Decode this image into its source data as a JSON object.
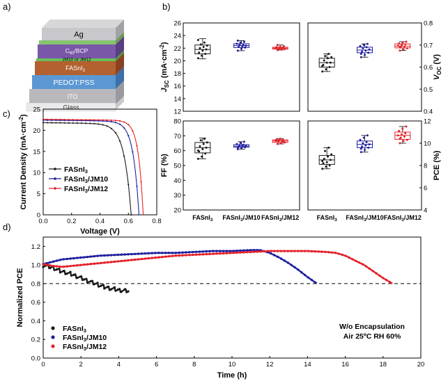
{
  "panels": {
    "a": "a)",
    "b": "b)",
    "c": "c)",
    "d": "d)"
  },
  "device_stack": {
    "layers": [
      "Ag",
      "C60/BCP",
      "JM10 or JM12",
      "FASnI3",
      "PEDOT:PSS",
      "ITO",
      "Glass"
    ],
    "c60_main": "C",
    "c60_sub": "60",
    "c60_rest": "/BCP",
    "fasni_main": "FASnI",
    "fasni_sub": "3"
  },
  "colors": {
    "black": "#1a1a1a",
    "blue": "#1f1f9e",
    "red": "#e3232b",
    "ag": "#c8c8cc",
    "c60": "#7a57a8",
    "jm": "#6abf59",
    "fasni": "#b35a2b",
    "pedot": "#4f8fd1",
    "ito": "#b4b4b8",
    "glass": "#e8e8ea"
  },
  "chart_data": [
    {
      "id": "b-jsc",
      "type": "box",
      "ylabel_main": "J",
      "ylabel_sub": "SC",
      "ylabel_rest": " (mA·cm",
      "ylabel_sup": "-2",
      "ylabel_end": ")",
      "ylim": [
        12,
        26
      ],
      "yticks": [
        12,
        14,
        16,
        18,
        20,
        22,
        24,
        26
      ],
      "categories": [
        "FASnI3",
        "FASnI3/JM10",
        "FASnI3/JM12"
      ],
      "boxes": [
        {
          "min": 20.3,
          "q1": 21.1,
          "median": 21.8,
          "q3": 22.5,
          "max": 23.5,
          "points": [
            20.4,
            20.8,
            21.1,
            21.3,
            21.6,
            21.8,
            22.0,
            22.2,
            22.4,
            22.6,
            22.9,
            23.3
          ]
        },
        {
          "min": 21.6,
          "q1": 22.1,
          "median": 22.4,
          "q3": 22.7,
          "max": 23.2,
          "points": [
            21.6,
            21.9,
            22.1,
            22.2,
            22.3,
            22.4,
            22.5,
            22.6,
            22.7,
            22.9,
            23.0,
            23.2
          ]
        },
        {
          "min": 21.7,
          "q1": 21.85,
          "median": 22.0,
          "q3": 22.15,
          "max": 22.5,
          "points": [
            21.7,
            21.8,
            21.85,
            21.9,
            22.0,
            22.0,
            22.05,
            22.1,
            22.15,
            22.2,
            22.3,
            22.5
          ]
        }
      ]
    },
    {
      "id": "b-voc",
      "type": "box",
      "ylabel_main": "V",
      "ylabel_sub": "OC",
      "ylabel_rest": " (V)",
      "ylim": [
        0.4,
        0.8
      ],
      "yticks": [
        0.4,
        0.5,
        0.6,
        0.7,
        0.8
      ],
      "categories": [
        "FASnI3",
        "FASnI3/JM10",
        "FASnI3/JM12"
      ],
      "boxes": [
        {
          "min": 0.58,
          "q1": 0.6,
          "median": 0.62,
          "q3": 0.64,
          "max": 0.66,
          "points": [
            0.58,
            0.59,
            0.6,
            0.61,
            0.62,
            0.62,
            0.63,
            0.64,
            0.645,
            0.65,
            0.66,
            0.605
          ]
        },
        {
          "min": 0.645,
          "q1": 0.665,
          "median": 0.677,
          "q3": 0.69,
          "max": 0.705,
          "points": [
            0.645,
            0.655,
            0.665,
            0.67,
            0.675,
            0.68,
            0.685,
            0.69,
            0.695,
            0.7,
            0.705,
            0.66
          ]
        },
        {
          "min": 0.675,
          "q1": 0.687,
          "median": 0.695,
          "q3": 0.705,
          "max": 0.715,
          "points": [
            0.675,
            0.68,
            0.685,
            0.69,
            0.693,
            0.697,
            0.7,
            0.703,
            0.707,
            0.71,
            0.715,
            0.69
          ]
        }
      ]
    },
    {
      "id": "b-ff",
      "type": "box",
      "ylabel_main": "FF (%)",
      "ylim": [
        20,
        80
      ],
      "yticks": [
        20,
        30,
        40,
        50,
        60,
        70,
        80
      ],
      "categories": [
        "FASnI3",
        "FASnI3/JM10",
        "FASnI3/JM12"
      ],
      "boxes": [
        {
          "min": 54.5,
          "q1": 58.5,
          "median": 62.0,
          "q3": 65.5,
          "max": 68.5,
          "points": [
            54.5,
            56.0,
            58.0,
            59.5,
            61.0,
            62.0,
            63.0,
            64.5,
            65.5,
            67.0,
            68.0,
            60.0
          ]
        },
        {
          "min": 61.0,
          "q1": 62.3,
          "median": 63.0,
          "q3": 64.0,
          "max": 66.0,
          "points": [
            61.0,
            61.8,
            62.3,
            62.7,
            63.0,
            63.3,
            63.7,
            64.0,
            64.5,
            65.2,
            66.0,
            62.0
          ]
        },
        {
          "min": 64.5,
          "q1": 65.5,
          "median": 66.5,
          "q3": 67.3,
          "max": 68.0,
          "points": [
            64.5,
            65.0,
            65.5,
            66.0,
            66.3,
            66.6,
            67.0,
            67.3,
            67.6,
            68.0,
            65.8,
            66.9
          ]
        }
      ]
    },
    {
      "id": "b-pce",
      "type": "box",
      "ylabel_main": "PCE (%)",
      "ylim": [
        4,
        12
      ],
      "yticks": [
        4,
        6,
        8,
        10,
        12
      ],
      "categories": [
        "FASnI3",
        "FASnI3/JM10",
        "FASnI3/JM12"
      ],
      "boxes": [
        {
          "min": 7.7,
          "q1": 8.1,
          "median": 8.5,
          "q3": 8.9,
          "max": 9.6,
          "points": [
            7.7,
            7.9,
            8.0,
            8.2,
            8.3,
            8.5,
            8.6,
            8.8,
            9.0,
            9.3,
            9.6,
            8.4
          ]
        },
        {
          "min": 9.2,
          "q1": 9.6,
          "median": 9.9,
          "q3": 10.2,
          "max": 10.7,
          "points": [
            9.2,
            9.4,
            9.6,
            9.7,
            9.8,
            9.9,
            10.0,
            10.1,
            10.3,
            10.5,
            10.7,
            9.5
          ]
        },
        {
          "min": 10.0,
          "q1": 10.35,
          "median": 10.7,
          "q3": 11.0,
          "max": 11.5,
          "points": [
            10.0,
            10.2,
            10.3,
            10.5,
            10.6,
            10.7,
            10.8,
            10.9,
            11.1,
            11.3,
            11.5,
            10.4
          ]
        }
      ]
    },
    {
      "id": "c-jv",
      "type": "line",
      "xlabel": "Voltage (V)",
      "ylabel_main": "Current Density (mA·cm",
      "ylabel_sup": "-2",
      "ylabel_end": ")",
      "xlim": [
        0,
        0.8
      ],
      "ylim": [
        0,
        25
      ],
      "xticks": [
        0.0,
        0.2,
        0.4,
        0.6,
        0.8
      ],
      "yticks": [
        0,
        5,
        10,
        15,
        20,
        25
      ],
      "series": [
        {
          "name": "FASnI3",
          "legend_main": "FASnI",
          "legend_sub": "3",
          "legend_rest": "",
          "color_key": "black",
          "jsc": 21.8,
          "voc": 0.62,
          "n": 0.048
        },
        {
          "name": "FASnI3/JM10",
          "legend_main": "FASnI",
          "legend_sub": "3",
          "legend_rest": "/JM10",
          "color_key": "blue",
          "jsc": 22.4,
          "voc": 0.675,
          "n": 0.04
        },
        {
          "name": "FASnI3/JM12",
          "legend_main": "FASnI",
          "legend_sub": "3",
          "legend_rest": "/JM12",
          "color_key": "red",
          "jsc": 22.6,
          "voc": 0.705,
          "n": 0.034
        }
      ]
    },
    {
      "id": "d-stability",
      "type": "line",
      "xlabel": "Time (h)",
      "ylabel": "Normalized  PCE",
      "xlim": [
        0,
        20
      ],
      "ylim": [
        0.0,
        1.3
      ],
      "xticks": [
        0,
        2,
        4,
        6,
        8,
        10,
        12,
        14,
        16,
        18,
        20
      ],
      "yticks": [
        0.0,
        0.2,
        0.4,
        0.6,
        0.8,
        1.0,
        1.2
      ],
      "reference_line": 0.8,
      "annotation_line1": "W/o Encapsulation",
      "annotation_line2": "Air 25ºC RH 60%",
      "series": [
        {
          "name": "FASnI3",
          "legend_main": "FASnI",
          "legend_sub": "3",
          "legend_rest": "",
          "color_key": "black",
          "x": [
            0,
            0.5,
            1.0,
            1.5,
            2.0,
            2.5,
            3.0,
            3.5,
            4.0,
            4.5
          ],
          "y": [
            1.0,
            0.97,
            0.93,
            0.9,
            0.86,
            0.82,
            0.78,
            0.75,
            0.73,
            0.72
          ]
        },
        {
          "name": "FASnI3/JM10",
          "legend_main": "FASnI",
          "legend_sub": "3",
          "legend_rest": "/JM10",
          "color_key": "blue",
          "x": [
            0,
            1,
            2,
            3,
            4,
            5,
            6,
            7,
            8,
            9,
            10,
            11,
            11.5,
            12,
            12.5,
            13,
            13.5,
            14,
            14.5
          ],
          "y": [
            1.01,
            1.06,
            1.08,
            1.1,
            1.11,
            1.12,
            1.13,
            1.13,
            1.14,
            1.15,
            1.15,
            1.16,
            1.16,
            1.13,
            1.08,
            1.02,
            0.95,
            0.87,
            0.8
          ]
        },
        {
          "name": "FASnI3/JM12",
          "legend_main": "FASnI",
          "legend_sub": "3",
          "legend_rest": "/JM12",
          "color_key": "red",
          "x": [
            0,
            0.5,
            1,
            2,
            3,
            4,
            5,
            6,
            7,
            8,
            9,
            10,
            11,
            12,
            13,
            14,
            15,
            15.5,
            16,
            16.5,
            17,
            17.5,
            18,
            18.5
          ],
          "y": [
            1.01,
            0.99,
            0.98,
            1.0,
            1.02,
            1.04,
            1.06,
            1.08,
            1.1,
            1.11,
            1.12,
            1.13,
            1.14,
            1.15,
            1.15,
            1.15,
            1.14,
            1.13,
            1.1,
            1.05,
            1.0,
            0.93,
            0.86,
            0.8
          ]
        }
      ]
    }
  ]
}
